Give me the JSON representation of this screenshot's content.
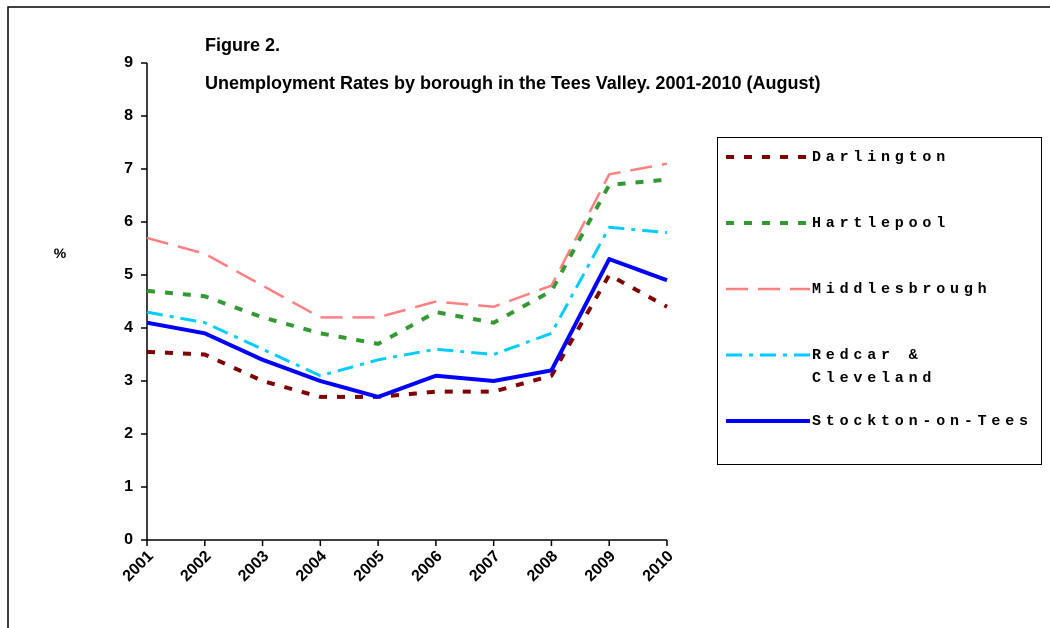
{
  "chart_data": {
    "type": "line",
    "title": "Figure 2.",
    "subtitle": "Unemployment Rates by borough in the Tees Valley. 2001-2010  (August)",
    "y_label": "%",
    "categories": [
      "2001",
      "2002",
      "2003",
      "2004",
      "2005",
      "2006",
      "2007",
      "2008",
      "2009",
      "2010"
    ],
    "series": [
      {
        "name": "Darlington",
        "color": "#800000",
        "values": [
          3.55,
          3.5,
          3.0,
          2.7,
          2.7,
          2.8,
          2.8,
          3.1,
          5.0,
          4.4
        ]
      },
      {
        "name": "Hartlepool",
        "color": "#339933",
        "values": [
          4.7,
          4.6,
          4.2,
          3.9,
          3.7,
          4.3,
          4.1,
          4.7,
          6.7,
          6.8
        ]
      },
      {
        "name": "Middlesbrough",
        "color": "#ff8080",
        "values": [
          5.7,
          5.4,
          4.8,
          4.2,
          4.2,
          4.5,
          4.4,
          4.8,
          6.9,
          7.1
        ]
      },
      {
        "name": "Redcar & Cleveland",
        "color": "#00ccff",
        "values": [
          4.3,
          4.1,
          3.6,
          3.1,
          3.4,
          3.6,
          3.5,
          3.9,
          5.9,
          5.8
        ]
      },
      {
        "name": "Stockton-on-Tees",
        "color": "#0000ff",
        "values": [
          4.1,
          3.9,
          3.4,
          3.0,
          2.7,
          3.1,
          3.0,
          3.2,
          5.3,
          4.9
        ]
      }
    ],
    "ylim": [
      0,
      9
    ],
    "yticks": [
      0,
      1,
      2,
      3,
      4,
      5,
      6,
      7,
      8,
      9
    ],
    "legend": "right"
  }
}
